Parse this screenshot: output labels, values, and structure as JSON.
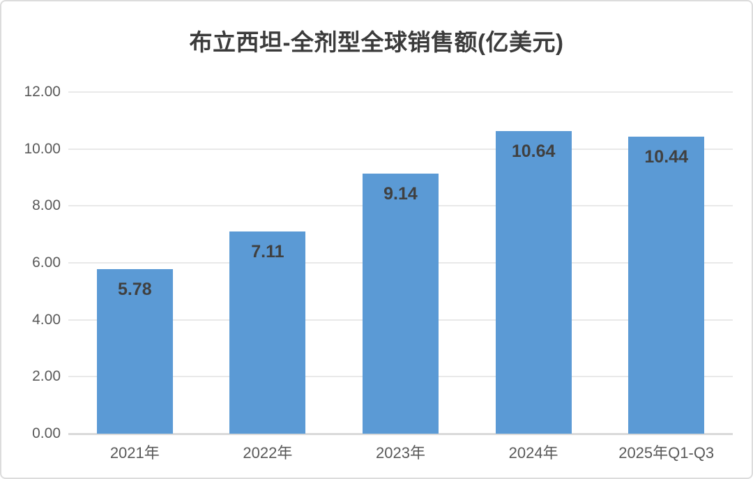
{
  "chart": {
    "title": "布立西坦-全剂型全球销售额(亿美元)"
  },
  "chart_data": {
    "type": "bar",
    "title": "布立西坦-全剂型全球销售额(亿美元)",
    "categories": [
      "2021年",
      "2022年",
      "2023年",
      "2024年",
      "2025年Q1-Q3"
    ],
    "values": [
      5.78,
      7.11,
      9.14,
      10.64,
      10.44
    ],
    "data_labels": [
      "5.78",
      "7.11",
      "9.14",
      "10.64",
      "10.44"
    ],
    "xlabel": "",
    "ylabel": "",
    "ylim": [
      0,
      12
    ],
    "ytick_step": 2,
    "ytick_labels": [
      "0.00",
      "2.00",
      "4.00",
      "6.00",
      "8.00",
      "10.00",
      "12.00"
    ],
    "grid": true,
    "legend": false,
    "data_label_position": "inside-end",
    "colors": {
      "bar": "#5B9AD5",
      "data_label": "#404040",
      "axis_text": "#595959",
      "gridline": "#E9E9E9",
      "baseline": "#D9D9D9",
      "title": "#3B3B3B",
      "card_border": "#DCDCDC",
      "background": "#FFFFFF"
    }
  }
}
